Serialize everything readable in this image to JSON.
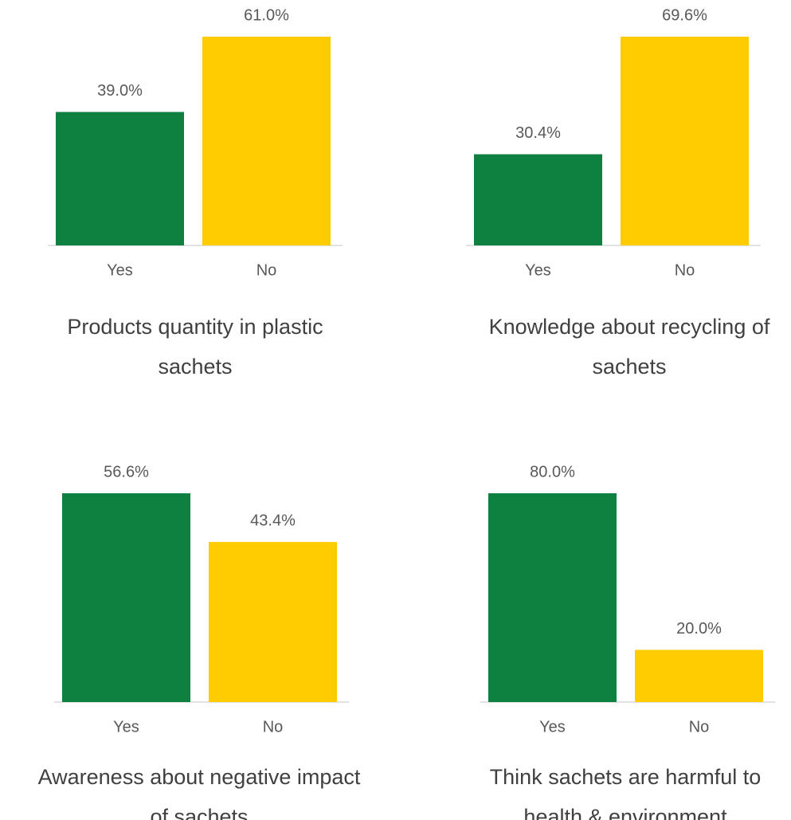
{
  "chart_data": [
    {
      "type": "bar",
      "title": "Products quantity in plastic sachets",
      "categories": [
        "Yes",
        "No"
      ],
      "values": [
        39.0,
        61.0
      ],
      "value_labels": [
        "39.0%",
        "61.0%"
      ],
      "colors": [
        "#0e8140",
        "#fecc00"
      ]
    },
    {
      "type": "bar",
      "title": "Knowledge about recycling of sachets",
      "categories": [
        "Yes",
        "No"
      ],
      "values": [
        30.4,
        69.6
      ],
      "value_labels": [
        "30.4%",
        "69.6%"
      ],
      "colors": [
        "#0e8140",
        "#fecc00"
      ]
    },
    {
      "type": "bar",
      "title": "Awareness about negative impact of sachets",
      "categories": [
        "Yes",
        "No"
      ],
      "values": [
        56.6,
        43.4
      ],
      "value_labels": [
        "56.6%",
        "43.4%"
      ],
      "colors": [
        "#0e8140",
        "#fecc00"
      ]
    },
    {
      "type": "bar",
      "title": "Think sachets are harmful to health & environment",
      "categories": [
        "Yes",
        "No"
      ],
      "values": [
        80.0,
        20.0
      ],
      "value_labels": [
        "80.0%",
        "20.0%"
      ],
      "colors": [
        "#0e8140",
        "#fecc00"
      ]
    }
  ]
}
